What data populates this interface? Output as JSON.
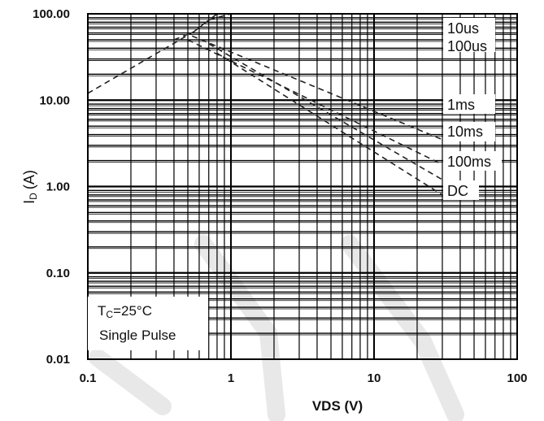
{
  "chart_data": {
    "type": "line",
    "xlabel": "VDS (V)",
    "ylabel_main": "ID",
    "ylabel_sub": "D",
    "ylabel_unit": "(A)",
    "x_scale": "log",
    "y_scale": "log",
    "xlim": [
      0.1,
      100
    ],
    "ylim": [
      0.01,
      100
    ],
    "x_ticks": [
      "0.1",
      "1",
      "10",
      "100"
    ],
    "y_ticks": [
      "100.00",
      "10.00",
      "1.00",
      "0.10",
      "0.01"
    ],
    "grid": true,
    "series": [
      {
        "name": "10us",
        "points": [
          [
            0.1,
            12
          ],
          [
            0.55,
            62
          ],
          [
            0.8,
            100
          ],
          [
            30,
            100
          ]
        ]
      },
      {
        "name": "100us",
        "points": [
          [
            0.55,
            62
          ],
          [
            0.7,
            85
          ],
          [
            1,
            100
          ],
          [
            100,
            100
          ]
        ]
      },
      {
        "name": "1ms",
        "points": [
          [
            0.4,
            50
          ],
          [
            0.5,
            58
          ],
          [
            30,
            3.5
          ]
        ]
      },
      {
        "name": "10ms",
        "points": [
          [
            0.5,
            50
          ],
          [
            30,
            1.8
          ]
        ]
      },
      {
        "name": "100ms",
        "points": [
          [
            0.7,
            45
          ],
          [
            30,
            1.2
          ]
        ]
      },
      {
        "name": "DC",
        "points": [
          [
            0.8,
            35
          ],
          [
            30,
            0.8
          ]
        ]
      }
    ],
    "annotations": {
      "tc_main": "T",
      "tc_sub": "C",
      "tc_value": "=25°C",
      "pulse": "Single Pulse"
    },
    "line_color": "#222222",
    "grid_color": "#000000"
  }
}
